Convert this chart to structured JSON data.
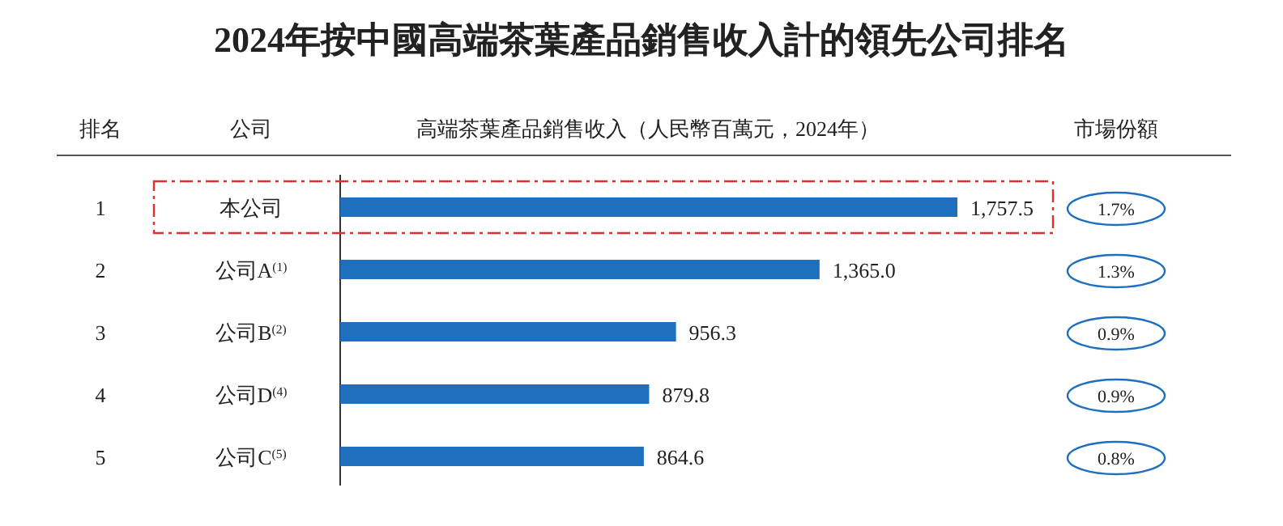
{
  "chart_data": {
    "type": "bar",
    "orientation": "horizontal",
    "title": "2024年按中國高端茶葉產品銷售收入計的領先公司排名",
    "xlabel": "高端茶葉產品銷售收入（人民幣百萬元，2024年）",
    "categories": [
      "本公司",
      "公司A$^{(1)}$",
      "公司B$^{(2)}$",
      "公司D$^{(4)}$",
      "公司C$^{(5)}$"
    ],
    "values": [
      1757.5,
      1365.0,
      956.3,
      879.8,
      864.6
    ],
    "value_labels": [
      "1,757.5",
      "1,365.0",
      "956.3",
      "879.8",
      "864.6"
    ],
    "color": "#1f6fbf",
    "annotations": [
      "排名",
      "公司",
      "市場份額",
      "1",
      "2",
      "3",
      "4",
      "5",
      "1.7%",
      "1.3%",
      "0.9%",
      "0.9%",
      "0.8%"
    ]
  }
}
